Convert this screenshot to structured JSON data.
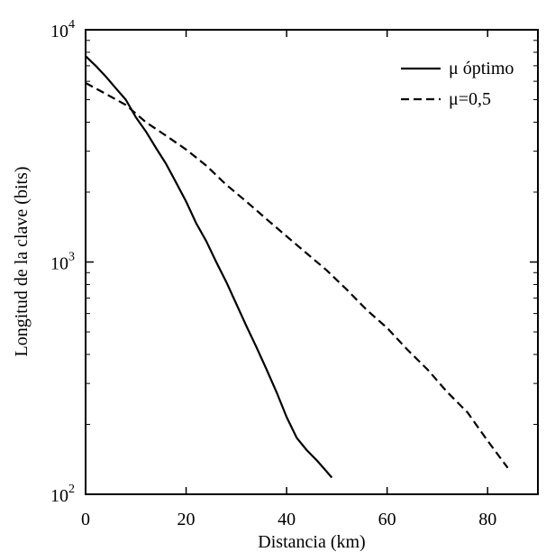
{
  "chart_data": {
    "type": "line",
    "title": "",
    "xlabel": "Distancia (km)",
    "ylabel": "Longitud de  la clave (bits)",
    "xlim": [
      0,
      90
    ],
    "ylim": [
      100,
      10000
    ],
    "y_scale": "log",
    "grid": false,
    "legend_position": "top-right",
    "x_ticks": [
      0,
      20,
      40,
      60,
      80
    ],
    "x_tick_labels": [
      "0",
      "20",
      "40",
      "60",
      "80"
    ],
    "y_ticks": [
      {
        "value": 10000,
        "base": "10",
        "exp": "4"
      },
      {
        "value": 1000,
        "base": "10",
        "exp": "3"
      },
      {
        "value": 100,
        "base": "10",
        "exp": "2"
      }
    ],
    "series": [
      {
        "name": "μ óptimo",
        "line_style": "solid",
        "color": "#000000",
        "x": [
          0,
          2,
          4,
          6,
          8,
          10,
          12,
          14,
          16,
          18,
          20,
          22,
          24,
          26,
          28,
          30,
          32,
          34,
          36,
          38,
          40,
          42,
          44,
          46,
          48,
          49
        ],
        "y": [
          7700,
          7000,
          6300,
          5600,
          5000,
          4200,
          3650,
          3100,
          2650,
          2200,
          1820,
          1470,
          1230,
          1000,
          820,
          660,
          530,
          430,
          345,
          275,
          215,
          175,
          155,
          140,
          125,
          118
        ]
      },
      {
        "name": "μ=0,5",
        "line_style": "dashed",
        "color": "#000000",
        "x": [
          0,
          4,
          8,
          12,
          16,
          20,
          24,
          28,
          32,
          36,
          40,
          44,
          48,
          52,
          56,
          60,
          64,
          68,
          72,
          76,
          80,
          84
        ],
        "y": [
          5900,
          5300,
          4750,
          4000,
          3500,
          3050,
          2600,
          2150,
          1820,
          1530,
          1290,
          1090,
          920,
          760,
          620,
          520,
          420,
          345,
          275,
          225,
          170,
          130
        ]
      }
    ]
  }
}
